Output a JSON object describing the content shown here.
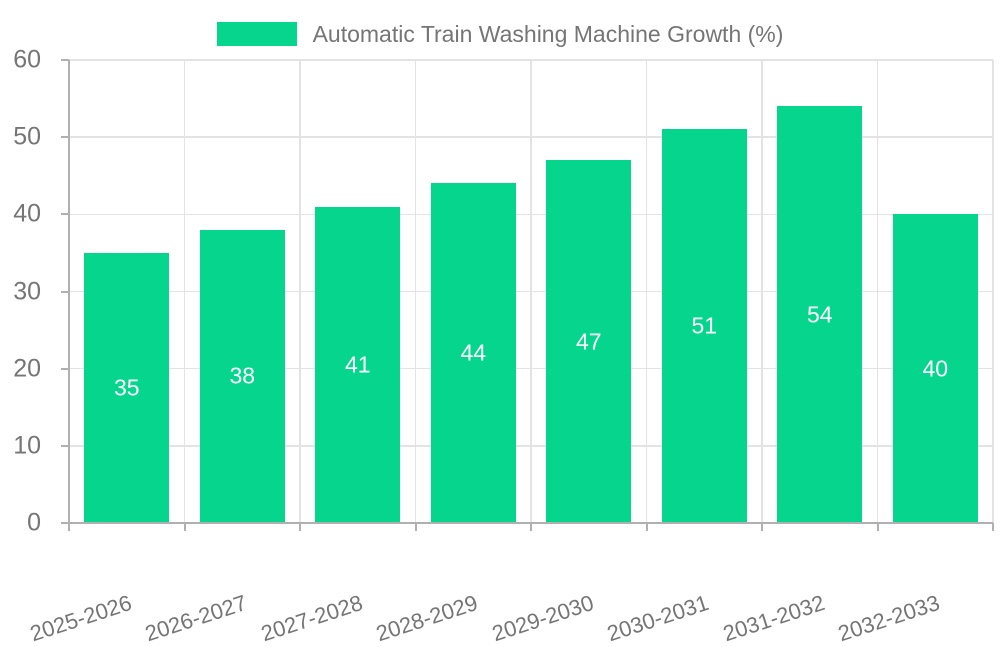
{
  "chart_data": {
    "type": "bar",
    "title": "",
    "legend": {
      "label": "Automatic Train Washing Machine Growth (%)",
      "position": "top-center"
    },
    "categories": [
      "2025-2026",
      "2026-2027",
      "2027-2028",
      "2028-2029",
      "2029-2030",
      "2030-2031",
      "2031-2032",
      "2032-2033"
    ],
    "series": [
      {
        "name": "Automatic Train Washing Machine Growth (%)",
        "values": [
          35,
          38,
          41,
          44,
          47,
          51,
          54,
          40
        ]
      }
    ],
    "value_labels": [
      "35",
      "38",
      "41",
      "44",
      "47",
      "51",
      "54",
      "40"
    ],
    "yticks": [
      0,
      10,
      20,
      30,
      40,
      50,
      60
    ],
    "ylim": [
      0,
      60
    ],
    "grid": true,
    "xtick_rotation_deg": -18,
    "colors": {
      "bar": "#06d68d",
      "bar_value_label": "#ffffff",
      "grid": "#e3e3e3",
      "axis": "#b0b0b0",
      "tick_text": "#757575",
      "legend_text": "#757575",
      "background": "#ffffff"
    }
  }
}
